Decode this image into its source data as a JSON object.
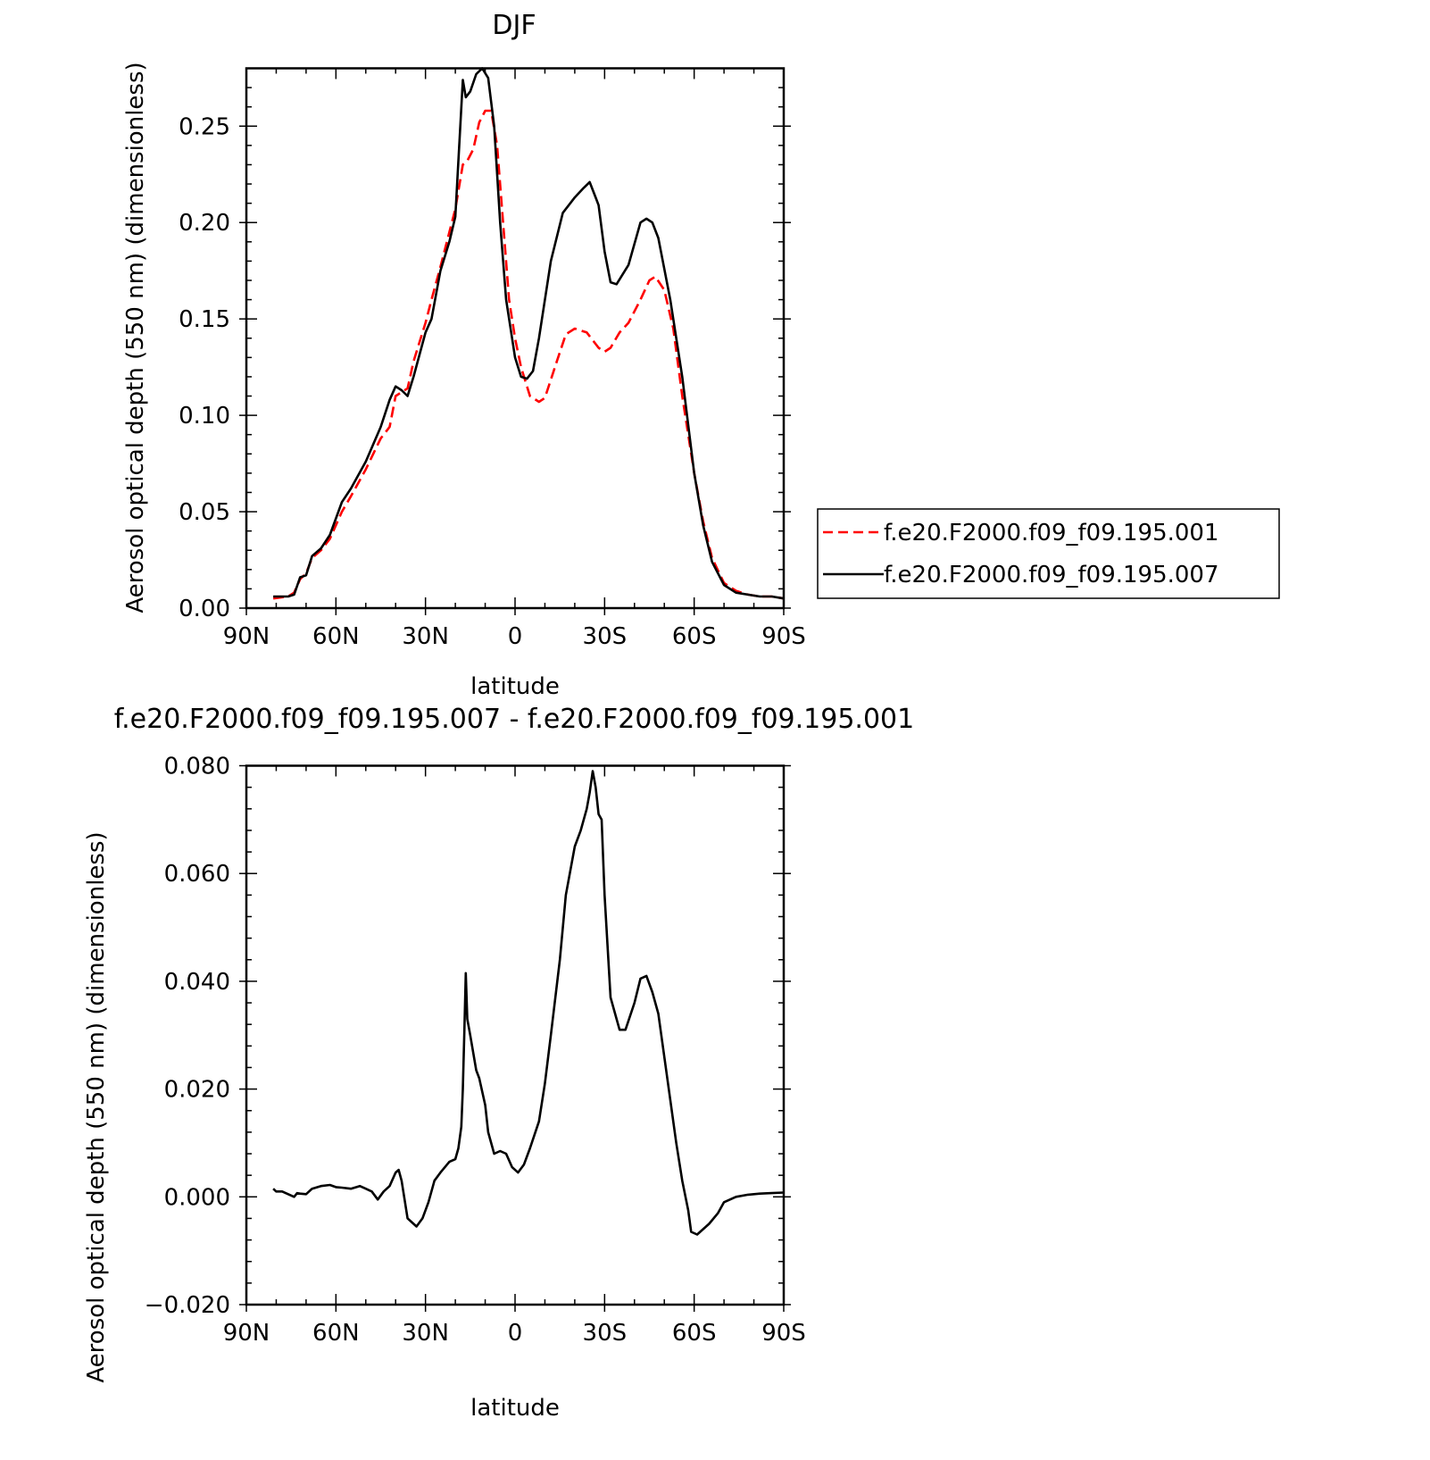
{
  "chart_data": [
    {
      "type": "line",
      "title": "DJF",
      "xlabel": "latitude",
      "ylabel": "Aerosol optical depth (550 nm) (dimensionless)",
      "xlim": [
        90,
        -90
      ],
      "ylim": [
        0,
        0.28
      ],
      "x_tick_labels": [
        "90N",
        "60N",
        "30N",
        "0",
        "30S",
        "60S",
        "90S"
      ],
      "y_tick_labels": [
        "0.00",
        "0.05",
        "0.10",
        "0.15",
        "0.20",
        "0.25"
      ],
      "legend_position": "right",
      "series": [
        {
          "name": "f.e20.F2000.f09_f09.195.001",
          "color": "#ff0000",
          "style": "dashed",
          "x": [
            81,
            76,
            74,
            72,
            70,
            68,
            65,
            62,
            58,
            55,
            50,
            45,
            42,
            40,
            38,
            36,
            34,
            30,
            28,
            25,
            22,
            20,
            17.5,
            16,
            14,
            12,
            10,
            8,
            6,
            4,
            2,
            0,
            -2,
            -5,
            -8,
            -10,
            -14,
            -17,
            -20,
            -24,
            -28,
            -30,
            -32,
            -35,
            -38,
            -42,
            -45,
            -47,
            -50,
            -53,
            -56,
            -60,
            -63,
            -66,
            -70,
            -74,
            -78,
            -82,
            -86,
            -90
          ],
          "y": [
            0.005,
            0.006,
            0.008,
            0.015,
            0.018,
            0.026,
            0.03,
            0.036,
            0.05,
            0.058,
            0.072,
            0.088,
            0.094,
            0.11,
            0.112,
            0.114,
            0.128,
            0.148,
            0.16,
            0.177,
            0.195,
            0.207,
            0.23,
            0.232,
            0.238,
            0.252,
            0.258,
            0.258,
            0.24,
            0.2,
            0.16,
            0.14,
            0.125,
            0.11,
            0.107,
            0.109,
            0.128,
            0.142,
            0.145,
            0.143,
            0.135,
            0.133,
            0.135,
            0.143,
            0.148,
            0.16,
            0.17,
            0.172,
            0.165,
            0.145,
            0.11,
            0.07,
            0.045,
            0.026,
            0.013,
            0.009,
            0.007,
            0.006,
            0.006,
            0.005
          ]
        },
        {
          "name": "f.e20.F2000.f09_f09.195.007",
          "color": "#000000",
          "style": "solid",
          "x": [
            81,
            76,
            74,
            72,
            70,
            68,
            65,
            62,
            58,
            55,
            50,
            45,
            42,
            40,
            38,
            36,
            34,
            30,
            28,
            25,
            22,
            20,
            17.5,
            16.5,
            15,
            13,
            11,
            9,
            7,
            5,
            3,
            0,
            -2,
            -4,
            -6,
            -8,
            -12,
            -16,
            -20,
            -23,
            -25,
            -27,
            -28,
            -30,
            -32,
            -34,
            -38,
            -42,
            -44,
            -46,
            -48,
            -52,
            -56,
            -60,
            -63,
            -66,
            -70,
            -74,
            -78,
            -82,
            -86,
            -90
          ],
          "y": [
            0.006,
            0.006,
            0.007,
            0.016,
            0.017,
            0.027,
            0.031,
            0.038,
            0.055,
            0.062,
            0.076,
            0.094,
            0.108,
            0.115,
            0.113,
            0.11,
            0.12,
            0.143,
            0.15,
            0.175,
            0.19,
            0.203,
            0.274,
            0.265,
            0.268,
            0.277,
            0.28,
            0.275,
            0.25,
            0.2,
            0.16,
            0.13,
            0.12,
            0.119,
            0.123,
            0.14,
            0.18,
            0.205,
            0.213,
            0.218,
            0.221,
            0.213,
            0.209,
            0.185,
            0.169,
            0.168,
            0.178,
            0.2,
            0.202,
            0.2,
            0.192,
            0.16,
            0.12,
            0.07,
            0.043,
            0.024,
            0.012,
            0.008,
            0.007,
            0.006,
            0.006,
            0.005
          ]
        }
      ]
    },
    {
      "type": "line",
      "title": "f.e20.F2000.f09_f09.195.007 - f.e20.F2000.f09_f09.195.001",
      "xlabel": "latitude",
      "ylabel": "Aerosol optical depth (550 nm) (dimensionless)",
      "xlim": [
        90,
        -90
      ],
      "ylim": [
        -0.02,
        0.08
      ],
      "x_tick_labels": [
        "90N",
        "60N",
        "30N",
        "0",
        "30S",
        "60S",
        "90S"
      ],
      "y_tick_labels": [
        "-0.020",
        "0.000",
        "0.020",
        "0.040",
        "0.060",
        "0.080"
      ],
      "series": [
        {
          "color": "#000000",
          "style": "solid",
          "x": [
            81,
            80,
            78,
            76,
            74,
            73,
            72,
            70,
            68,
            65,
            62,
            60,
            58,
            55,
            52,
            50,
            48,
            46,
            44,
            42,
            40,
            39,
            38,
            36,
            34,
            33,
            31,
            29,
            27,
            25,
            22,
            20,
            19,
            18,
            17.5,
            17,
            16.5,
            16,
            15,
            13,
            12,
            10,
            9,
            7,
            5,
            3,
            1,
            0,
            -1,
            -3,
            -5,
            -8,
            -10,
            -12,
            -15,
            -17,
            -20,
            -22,
            -24,
            -25,
            -26,
            -27,
            -28,
            -29,
            -30,
            -32,
            -35,
            -37,
            -40,
            -42,
            -44,
            -46,
            -48,
            -52,
            -54,
            -56,
            -58,
            -59,
            -61,
            -63,
            -65,
            -68,
            -70,
            -74,
            -78,
            -82,
            -86,
            -90
          ],
          "y": [
            0.0015,
            0.001,
            0.001,
            0.0005,
            0.0,
            0.0007,
            0.0006,
            0.0005,
            0.0015,
            0.002,
            0.0022,
            0.0018,
            0.0017,
            0.0015,
            0.002,
            0.0015,
            0.001,
            -0.0005,
            0.001,
            0.002,
            0.0045,
            0.005,
            0.003,
            -0.004,
            -0.005,
            -0.0055,
            -0.004,
            -0.001,
            0.003,
            0.0045,
            0.0065,
            0.007,
            0.009,
            0.013,
            0.02,
            0.03,
            0.0415,
            0.033,
            0.03,
            0.0235,
            0.022,
            0.017,
            0.012,
            0.008,
            0.0085,
            0.008,
            0.0055,
            0.005,
            0.0045,
            0.006,
            0.009,
            0.014,
            0.021,
            0.03,
            0.044,
            0.056,
            0.065,
            0.068,
            0.072,
            0.075,
            0.079,
            0.076,
            0.071,
            0.07,
            0.056,
            0.037,
            0.031,
            0.031,
            0.036,
            0.0405,
            0.041,
            0.038,
            0.034,
            0.018,
            0.01,
            0.003,
            -0.0025,
            -0.0065,
            -0.007,
            -0.006,
            -0.005,
            -0.003,
            -0.001,
            0.0,
            0.0004,
            0.0006,
            0.0007,
            0.0008
          ]
        }
      ]
    }
  ]
}
